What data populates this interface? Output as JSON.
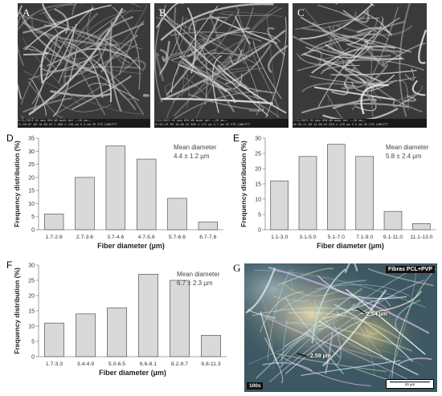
{
  "sem_panels": [
    {
      "letter": "A",
      "info": "5/31/2023  HV   mag  HFW  WD  mode  det  ——20 µm——",
      "info2": "11:50:07 AM 10.00 kV 2 000 x 138 µm 9.4 mm SE  ETD   LANCYTT"
    },
    {
      "letter": "B",
      "info": "7/11/2023  HV   mag  HFW  WD  mode  det  ——20 µm——",
      "info2": "12:02:33 PM 10.00 kV 805 x 172 µm 3.7 mm SE  ETD   LANCYTT"
    },
    {
      "letter": "C",
      "info": "7/11/2023  HV   mag  HFW  WD  mode  det  ——20 µm——",
      "info2": "10:38:11 AM 12.00 kV 853 x 159 µm 3.5 mm SE  ETD   LANCYTT"
    }
  ],
  "chart_data": [
    {
      "panel": "D",
      "type": "bar",
      "categories": [
        "1.7-2.6",
        "2.7-3.6",
        "3.7-4.6",
        "4.7-5.6",
        "5.7-6.6",
        "6.7-7.6"
      ],
      "values": [
        6,
        20,
        32,
        27,
        12,
        3
      ],
      "ylim": [
        0,
        35
      ],
      "yticks": [
        0,
        5,
        10,
        15,
        20,
        25,
        30,
        35
      ],
      "ylabel": "Frequency distribution (%)",
      "xlabel": "Fiber diameter (µm)",
      "annotation": [
        "Mean diameter",
        "4.4 ± 1.2 µm"
      ],
      "bar_color": "#d9d9d9"
    },
    {
      "panel": "E",
      "type": "bar",
      "categories": [
        "1.1-3.0",
        "3.1-5.0",
        "5.1-7.0",
        "7.1-9.0",
        "9.1-11.0",
        "11.1-13.0"
      ],
      "values": [
        16,
        24,
        28,
        24,
        6,
        2
      ],
      "ylim": [
        0,
        30
      ],
      "yticks": [
        0,
        5,
        10,
        15,
        20,
        25,
        30
      ],
      "ylabel": "Frequency distribution (%)",
      "xlabel": "Fiber diameter (µm)",
      "annotation": [
        "Mean diameter",
        "5.8 ± 2.4 µm"
      ],
      "bar_color": "#d9d9d9"
    },
    {
      "panel": "F",
      "type": "bar",
      "categories": [
        "1.7-3.3",
        "3.4-4.9",
        "5.0-6.5",
        "6.6-8.1",
        "8.2-9.7",
        "9.8-11.3"
      ],
      "values": [
        11,
        14,
        16,
        27,
        25,
        7
      ],
      "ylim": [
        0,
        30
      ],
      "yticks": [
        0,
        5,
        10,
        15,
        20,
        25,
        30
      ],
      "ylabel": "Frequency distribution (%)",
      "xlabel": "Fiber diameter (µm)",
      "annotation": [
        "Mean diameter",
        "6.7 ± 2.3 µm"
      ],
      "bar_color": "#d9d9d9"
    }
  ],
  "micrograph": {
    "letter": "G",
    "tag": "Fibras PCL+PVP",
    "magnification": "100x",
    "measure_1": "2.64 µm",
    "measure_2": "2.59 µm",
    "scale_label": "20 µm"
  }
}
